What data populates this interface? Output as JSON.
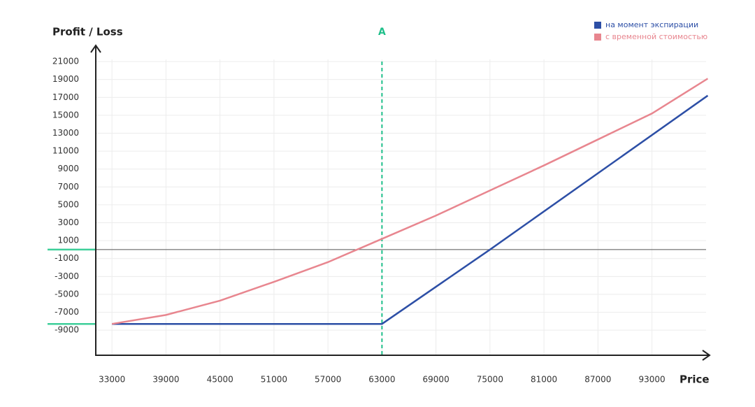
{
  "chart_data": {
    "type": "line",
    "ylabel": "Profit / Loss",
    "xlabel": "Price",
    "xlim": [
      31200,
      99400
    ],
    "ylim": [
      -11800,
      22800
    ],
    "xticks": [
      33000,
      39000,
      45000,
      51000,
      57000,
      63000,
      69000,
      75000,
      81000,
      87000,
      93000
    ],
    "yticks": [
      21000,
      19000,
      17000,
      15000,
      13000,
      11000,
      9000,
      7000,
      5000,
      3000,
      1000,
      -1000,
      -3000,
      -5000,
      -7000,
      -9000
    ],
    "grid": true,
    "legend": "top-right",
    "vline": {
      "x": 63000,
      "label": "A",
      "color": "#1fbf8a"
    },
    "highlight_levels": [
      0,
      -8300
    ],
    "series": [
      {
        "name": "на момент экспирации",
        "color": "#2d4fa6",
        "x": [
          33000,
          63000,
          75000,
          99200
        ],
        "values": [
          -8300,
          -8300,
          0,
          17200
        ]
      },
      {
        "name": "с временной стоимостью",
        "color": "#e8868f",
        "x": [
          33000,
          39000,
          45000,
          51000,
          57000,
          63000,
          69000,
          75000,
          81000,
          87000,
          93000,
          99200
        ],
        "values": [
          -8300,
          -7300,
          -5700,
          -3600,
          -1400,
          1200,
          3800,
          6600,
          9400,
          12300,
          15200,
          19100
        ]
      }
    ]
  }
}
